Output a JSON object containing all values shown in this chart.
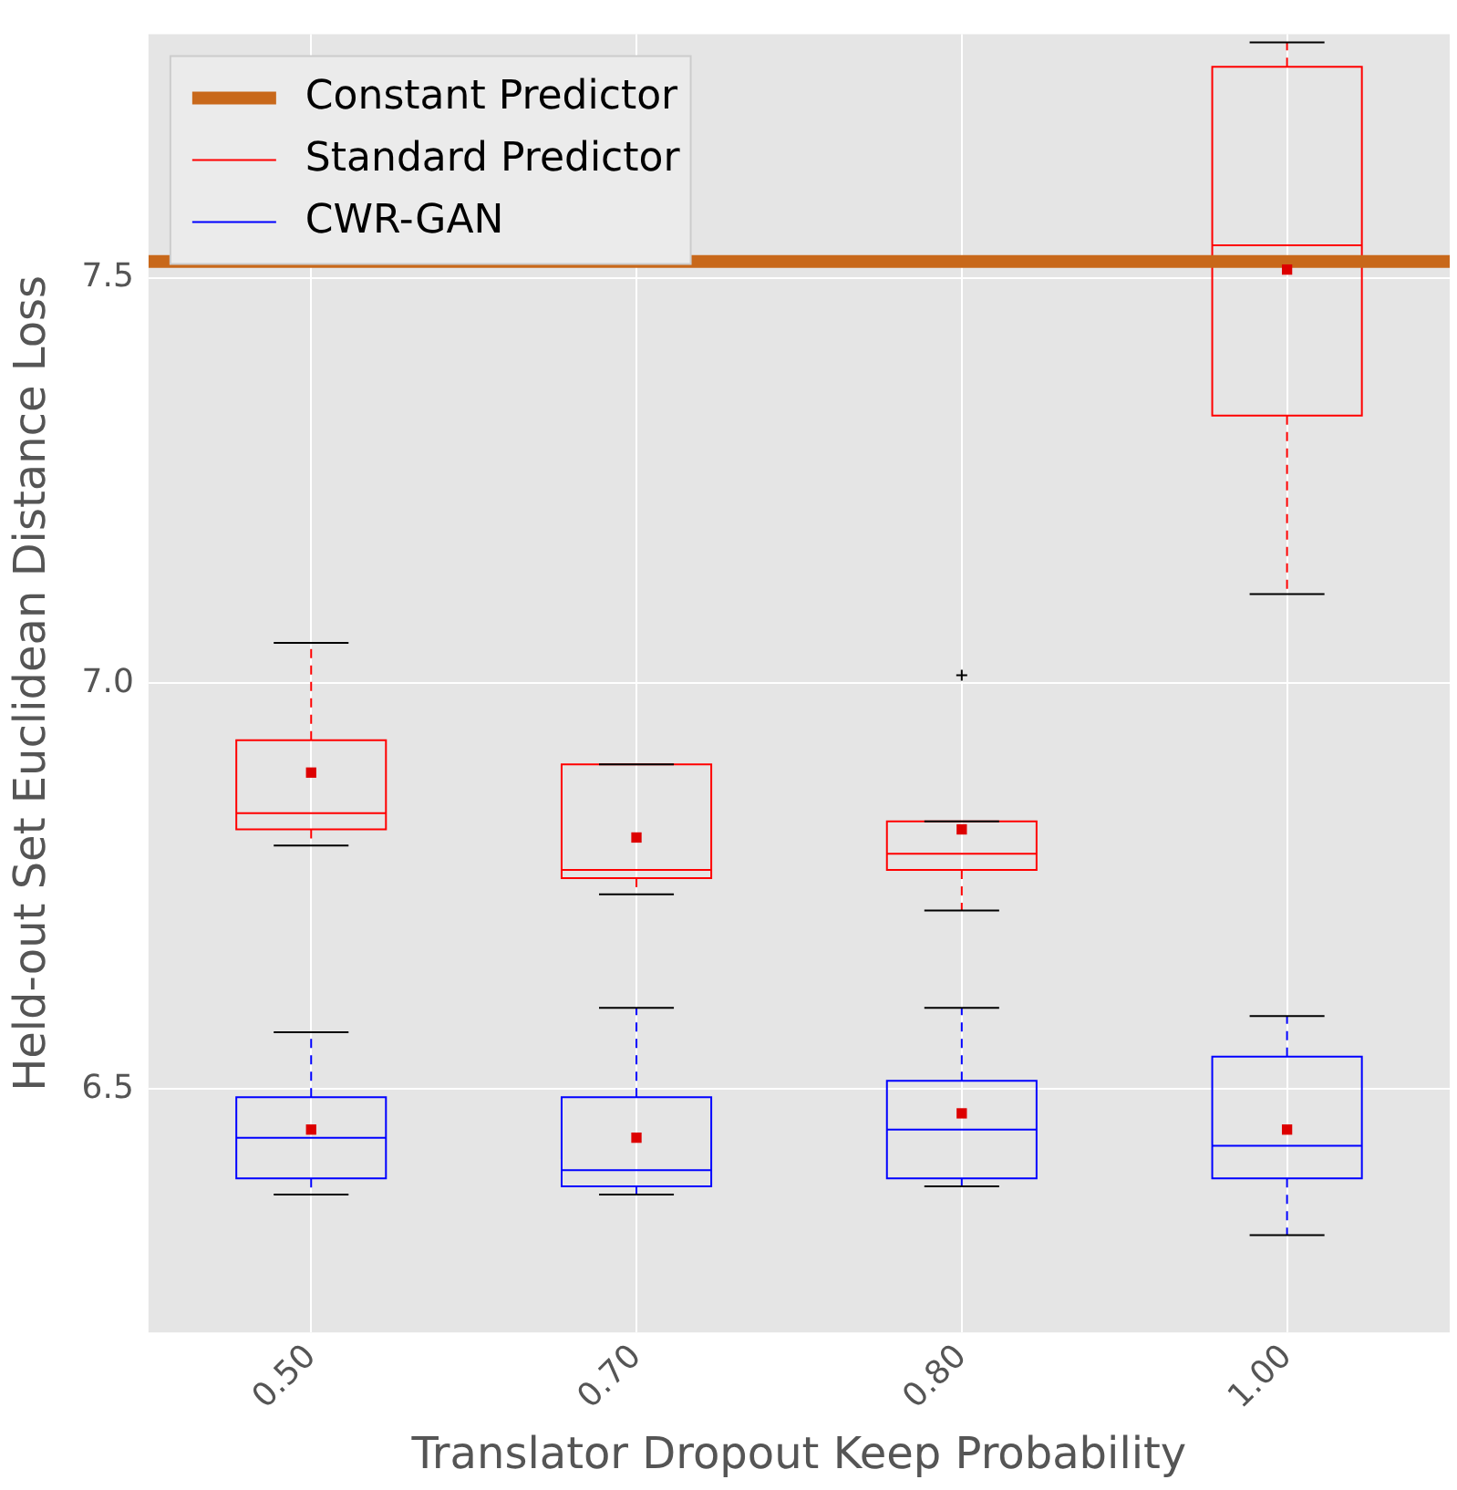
{
  "chart_data": {
    "type": "box",
    "xlabel": "Translator Dropout Keep Probability",
    "ylabel": "Held-out Set Euclidean Distance Loss",
    "categories": [
      "0.50",
      "0.70",
      "0.80",
      "1.00"
    ],
    "ylim": [
      6.2,
      7.8
    ],
    "yticks": [
      {
        "value": 6.5,
        "label": "6.5"
      },
      {
        "value": 7.0,
        "label": "7.0"
      },
      {
        "value": 7.5,
        "label": "7.5"
      }
    ],
    "grid": true,
    "legend": "top left",
    "ref_lines": [
      {
        "axis": "y",
        "value": 7.52,
        "label": "Constant Predictor",
        "color": "#c8681a"
      }
    ],
    "series": [
      {
        "name": "Standard Predictor",
        "color": "#ff0000",
        "boxes": [
          {
            "low": 6.8,
            "q1": 6.82,
            "median": 6.84,
            "q3": 6.93,
            "high": 7.05
          },
          {
            "low": 6.74,
            "q1": 6.76,
            "median": 6.77,
            "q3": 6.9,
            "high": 6.9
          },
          {
            "low": 6.72,
            "q1": 6.77,
            "median": 6.79,
            "q3": 6.83,
            "high": 6.83,
            "outliers": [
              7.01
            ]
          },
          {
            "low": 7.11,
            "q1": 7.33,
            "median": 7.54,
            "q3": 7.76,
            "high": 7.79
          }
        ]
      },
      {
        "name": "CWR-GAN",
        "color": "#0000ff",
        "boxes": [
          {
            "low": 6.37,
            "q1": 6.39,
            "median": 6.44,
            "q3": 6.49,
            "high": 6.57
          },
          {
            "low": 6.37,
            "q1": 6.38,
            "median": 6.4,
            "q3": 6.49,
            "high": 6.6
          },
          {
            "low": 6.38,
            "q1": 6.39,
            "median": 6.45,
            "q3": 6.51,
            "high": 6.6
          },
          {
            "low": 6.32,
            "q1": 6.39,
            "median": 6.43,
            "q3": 6.54,
            "high": 6.59
          }
        ]
      },
      {
        "type": "scatter",
        "color": "#dd0000",
        "marker": "square",
        "x": [
          "0.50",
          "0.50",
          "0.70",
          "0.70",
          "0.80",
          "0.80",
          "1.00",
          "1.00"
        ],
        "values": [
          6.89,
          6.45,
          6.81,
          6.44,
          6.82,
          6.47,
          7.51,
          6.45
        ]
      }
    ]
  }
}
